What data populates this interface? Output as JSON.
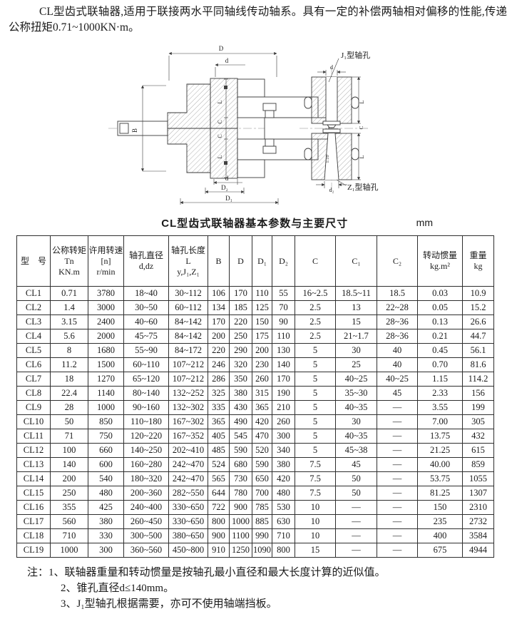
{
  "intro": "CL型齿式联轴器,适用于联接两水平同轴线传动轴系。具有一定的补偿两轴相对偏移的性能,传递公称扭矩0.71~1000KN·m。",
  "drawing": {
    "labels": {
      "D": "D",
      "d": "d",
      "B": "B",
      "L": "L",
      "C": "C",
      "D1": "D₁",
      "D2": "D₂",
      "d2": "d₂",
      "taper": "1:10",
      "j1": "J₁型轴孔",
      "z1": "Z₁型轴孔"
    }
  },
  "table": {
    "title": "CL型齿式联轴器基本参数与主要尺寸",
    "unit": "mm",
    "columns": [
      {
        "lines": [
          "型　号"
        ]
      },
      {
        "lines": [
          "公称转矩",
          "Tn",
          "KN.m"
        ]
      },
      {
        "lines": [
          "许用转速",
          "[n]",
          "r/min"
        ]
      },
      {
        "lines": [
          "轴孔直径",
          "d,dz"
        ]
      },
      {
        "lines": [
          "轴孔长度",
          "L",
          "y,J₁,Z₁"
        ]
      },
      {
        "lines": [
          "B"
        ]
      },
      {
        "lines": [
          "D"
        ]
      },
      {
        "lines": [
          "D₁"
        ]
      },
      {
        "lines": [
          "D₂"
        ]
      },
      {
        "lines": [
          "C"
        ]
      },
      {
        "lines": [
          "C₁"
        ]
      },
      {
        "lines": [
          "C₂"
        ]
      },
      {
        "lines": [
          "转动惯量",
          "kg.m²"
        ]
      },
      {
        "lines": [
          "重量",
          "kg"
        ]
      }
    ],
    "rows": [
      [
        "CL1",
        "0.71",
        "3780",
        "18~40",
        "30~112",
        "106",
        "170",
        "110",
        "55",
        "16~2.5",
        "18.5~11",
        "18.5",
        "0.03",
        "10.9"
      ],
      [
        "CL2",
        "1.4",
        "3000",
        "30~50",
        "60~112",
        "134",
        "185",
        "125",
        "70",
        "2.5",
        "13",
        "22~28",
        "0.05",
        "15.2"
      ],
      [
        "CL3",
        "3.15",
        "2400",
        "40~60",
        "84~142",
        "170",
        "220",
        "150",
        "90",
        "2.5",
        "15",
        "28~36",
        "0.13",
        "26.6"
      ],
      [
        "CL4",
        "5.6",
        "2000",
        "45~75",
        "84~142",
        "200",
        "250",
        "175",
        "110",
        "2.5",
        "21~1.7",
        "28~36",
        "0.21",
        "44.7"
      ],
      [
        "CL5",
        "8",
        "1680",
        "55~90",
        "84~172",
        "220",
        "290",
        "200",
        "130",
        "5",
        "30",
        "40",
        "0.45",
        "56.1"
      ],
      [
        "CL6",
        "11.2",
        "1500",
        "60~110",
        "107~212",
        "246",
        "320",
        "230",
        "140",
        "5",
        "25",
        "40",
        "0.70",
        "81.6"
      ],
      [
        "CL7",
        "18",
        "1270",
        "65~120",
        "107~212",
        "286",
        "350",
        "260",
        "170",
        "5",
        "40~25",
        "40~25",
        "1.15",
        "114.2"
      ],
      [
        "CL8",
        "22.4",
        "1140",
        "80~140",
        "132~252",
        "325",
        "380",
        "315",
        "190",
        "5",
        "35~30",
        "45",
        "2.33",
        "156"
      ],
      [
        "CL9",
        "28",
        "1000",
        "90~160",
        "132~302",
        "335",
        "430",
        "365",
        "210",
        "5",
        "40~35",
        "—",
        "3.55",
        "199"
      ],
      [
        "CL10",
        "50",
        "850",
        "110~180",
        "167~302",
        "365",
        "490",
        "420",
        "260",
        "5",
        "30",
        "—",
        "7.00",
        "305"
      ],
      [
        "CL11",
        "71",
        "750",
        "120~220",
        "167~352",
        "405",
        "545",
        "470",
        "300",
        "5",
        "40~35",
        "—",
        "13.75",
        "432"
      ],
      [
        "CL12",
        "100",
        "660",
        "140~250",
        "202~410",
        "485",
        "590",
        "520",
        "340",
        "5",
        "45~38",
        "—",
        "21.25",
        "615"
      ],
      [
        "CL13",
        "140",
        "600",
        "160~280",
        "242~470",
        "524",
        "680",
        "590",
        "380",
        "7.5",
        "45",
        "—",
        "40.00",
        "859"
      ],
      [
        "CL14",
        "200",
        "540",
        "180~320",
        "242~470",
        "565",
        "730",
        "650",
        "420",
        "7.5",
        "50",
        "—",
        "53.75",
        "1055"
      ],
      [
        "CL15",
        "250",
        "480",
        "200~360",
        "282~550",
        "644",
        "780",
        "700",
        "480",
        "7.5",
        "50",
        "—",
        "81.25",
        "1307"
      ],
      [
        "CL16",
        "355",
        "425",
        "240~400",
        "330~650",
        "722",
        "900",
        "785",
        "530",
        "10",
        "—",
        "—",
        "150",
        "2310"
      ],
      [
        "CL17",
        "560",
        "380",
        "260~450",
        "330~650",
        "800",
        "1000",
        "885",
        "630",
        "10",
        "—",
        "—",
        "235",
        "2732"
      ],
      [
        "CL18",
        "710",
        "330",
        "300~500",
        "380~650",
        "900",
        "1100",
        "990",
        "710",
        "10",
        "—",
        "—",
        "400",
        "3584"
      ],
      [
        "CL19",
        "1000",
        "300",
        "360~560",
        "450~800",
        "910",
        "1250",
        "1090",
        "800",
        "15",
        "—",
        "—",
        "675",
        "4944"
      ]
    ]
  },
  "notes": {
    "prefix": "注：",
    "items": [
      "1、联轴器重量和转动惯量是按轴孔最小直径和最大长度计算的近似值。",
      "2、锥孔直径d≤140mm。",
      "3、J₁型轴孔根据需要，亦可不使用轴端挡板。"
    ]
  }
}
